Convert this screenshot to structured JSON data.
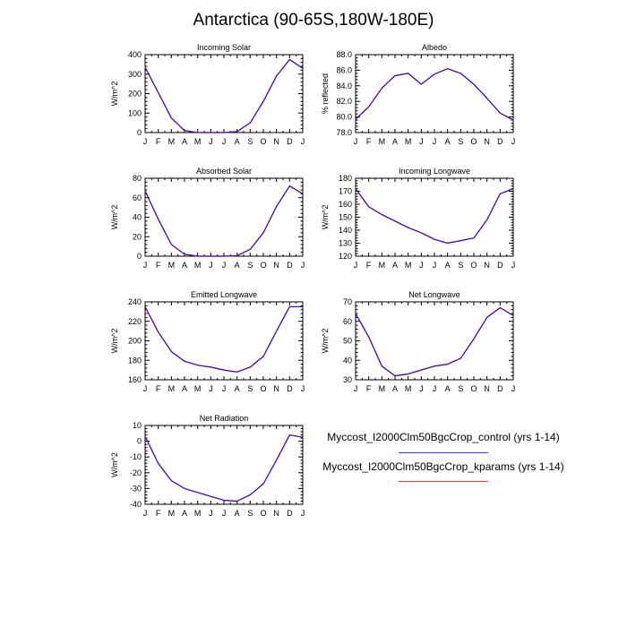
{
  "title": "Antarctica (90-65S,180W-180E)",
  "months": [
    "J",
    "F",
    "M",
    "A",
    "M",
    "J",
    "J",
    "A",
    "S",
    "O",
    "N",
    "D",
    "J"
  ],
  "legend": [
    {
      "label": "Myccost_I2000Clm50BgcCrop_control (yrs 1-14)",
      "color": "#3b3bdc"
    },
    {
      "label": "Myccost_I2000Clm50BgcCrop_kparams (yrs 1-14)",
      "color": "#e03b3b"
    }
  ],
  "colors": {
    "control": "#3b3bdc",
    "kparams": "#e03b3b",
    "overlap": "#3a0fa8"
  },
  "chart_data": [
    {
      "type": "line",
      "title": "Incoming Solar",
      "ylabel": "W/m^2",
      "ylim": [
        0,
        400
      ],
      "yticks": [
        0,
        100,
        200,
        300,
        400
      ],
      "decimals": 0,
      "series": [
        {
          "name": "control",
          "values": [
            335,
            205,
            75,
            10,
            0,
            0,
            0,
            5,
            50,
            160,
            290,
            375,
            330
          ]
        },
        {
          "name": "kparams",
          "values": [
            335,
            205,
            75,
            10,
            0,
            0,
            0,
            5,
            50,
            160,
            290,
            375,
            330
          ]
        }
      ]
    },
    {
      "type": "line",
      "title": "Albedo",
      "ylabel": "% reflected",
      "ylim": [
        78,
        88
      ],
      "yticks": [
        78,
        80,
        82,
        84,
        86,
        88
      ],
      "decimals": 1,
      "series": [
        {
          "name": "control",
          "values": [
            79.7,
            81.3,
            83.7,
            85.3,
            85.6,
            84.2,
            85.5,
            86.2,
            85.6,
            84.2,
            82.4,
            80.5,
            79.6
          ]
        },
        {
          "name": "kparams",
          "values": [
            79.7,
            81.3,
            83.7,
            85.3,
            85.6,
            84.2,
            85.5,
            86.2,
            85.6,
            84.2,
            82.4,
            80.5,
            79.6
          ]
        }
      ]
    },
    {
      "type": "line",
      "title": "Absorbed Solar",
      "ylabel": "W/m^2",
      "ylim": [
        0,
        80
      ],
      "yticks": [
        0,
        20,
        40,
        60,
        80
      ],
      "decimals": 0,
      "series": [
        {
          "name": "control",
          "values": [
            67,
            38,
            12,
            2,
            0,
            0,
            0,
            0.5,
            7,
            24,
            51,
            72,
            64
          ]
        },
        {
          "name": "kparams",
          "values": [
            67,
            38,
            12,
            2,
            0,
            0,
            0,
            0.5,
            7,
            24,
            51,
            72,
            64
          ]
        }
      ]
    },
    {
      "type": "line",
      "title": "Incoming Longwave",
      "ylabel": "W/m^2",
      "ylim": [
        120,
        180
      ],
      "yticks": [
        120,
        130,
        140,
        150,
        160,
        170,
        180
      ],
      "decimals": 0,
      "series": [
        {
          "name": "control",
          "values": [
            172,
            158,
            152,
            147,
            142,
            138,
            133,
            130,
            132,
            134,
            148,
            168,
            172
          ]
        },
        {
          "name": "kparams",
          "values": [
            172,
            158,
            152,
            147,
            142,
            138,
            133,
            130,
            132,
            134,
            148,
            168,
            172
          ]
        }
      ]
    },
    {
      "type": "line",
      "title": "Emitted Longwave",
      "ylabel": "W/m^2",
      "ylim": [
        160,
        240
      ],
      "yticks": [
        160,
        180,
        200,
        220,
        240
      ],
      "decimals": 0,
      "series": [
        {
          "name": "control",
          "values": [
            235,
            209,
            189,
            179,
            175,
            173,
            170,
            168,
            173,
            184,
            210,
            235,
            235
          ]
        },
        {
          "name": "kparams",
          "values": [
            235,
            209,
            189,
            179,
            175,
            173,
            170,
            168,
            173,
            184,
            210,
            235,
            235
          ]
        }
      ]
    },
    {
      "type": "line",
      "title": "Net Longwave",
      "ylabel": "W/m^2",
      "ylim": [
        30,
        70
      ],
      "yticks": [
        30,
        40,
        50,
        60,
        70
      ],
      "decimals": 0,
      "series": [
        {
          "name": "control",
          "values": [
            64,
            52,
            37,
            32,
            33,
            35,
            37,
            38,
            41,
            51,
            62,
            67,
            63
          ]
        },
        {
          "name": "kparams",
          "values": [
            64,
            52,
            37,
            32,
            33,
            35,
            37,
            38,
            41,
            51,
            62,
            67,
            63
          ]
        }
      ]
    },
    {
      "type": "line",
      "title": "Net Radiation",
      "ylabel": "W/m^2",
      "ylim": [
        -40,
        10
      ],
      "yticks": [
        -40,
        -30,
        -20,
        -10,
        0,
        10
      ],
      "decimals": 0,
      "series": [
        {
          "name": "control",
          "values": [
            3,
            -14,
            -25,
            -30,
            -32.5,
            -35,
            -37.5,
            -38,
            -34,
            -27,
            -12,
            4,
            2.5
          ]
        },
        {
          "name": "kparams",
          "values": [
            3,
            -14,
            -25,
            -30,
            -32.5,
            -35,
            -37.5,
            -38,
            -34,
            -27,
            -12,
            4,
            2.5
          ]
        }
      ]
    }
  ]
}
